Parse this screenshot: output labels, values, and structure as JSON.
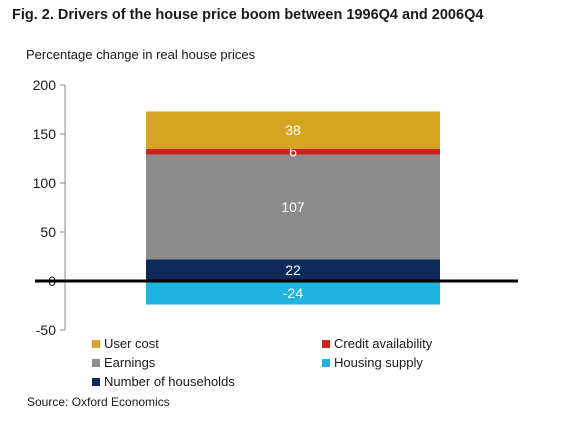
{
  "title": "Fig. 2. Drivers of the house price boom between 1996Q4 and 2006Q4",
  "chart_data": {
    "type": "bar",
    "stacked": true,
    "title": "Fig. 2. Drivers of the house price boom between 1996Q4 and 2006Q4",
    "ylabel": "Percentage change in real house prices",
    "xlabel": "",
    "ylim": [
      -50,
      200
    ],
    "yticks": [
      200,
      150,
      100,
      50,
      0,
      -50
    ],
    "series": [
      {
        "name": "Number of households",
        "value": 22,
        "label": "22",
        "color": "#0d2a5a"
      },
      {
        "name": "Earnings",
        "value": 107,
        "label": "107",
        "color": "#8c8c8c"
      },
      {
        "name": "Credit availability",
        "value": 6,
        "label": "6",
        "color": "#cc2222"
      },
      {
        "name": "User cost",
        "value": 38,
        "label": "38",
        "color": "#d6a521"
      },
      {
        "name": "Housing supply",
        "value": -24,
        "label": "-24",
        "color": "#1fb3e0"
      }
    ],
    "legend": [
      {
        "name": "User cost",
        "color": "#d6a521"
      },
      {
        "name": "Credit availability",
        "color": "#cc2222"
      },
      {
        "name": "Earnings",
        "color": "#8c8c8c"
      },
      {
        "name": "Housing supply",
        "color": "#1fb3e0"
      },
      {
        "name": "Number of households",
        "color": "#0d2a5a"
      }
    ],
    "grid": false,
    "legend_position": "bottom"
  },
  "source": "Source: Oxford Economics"
}
